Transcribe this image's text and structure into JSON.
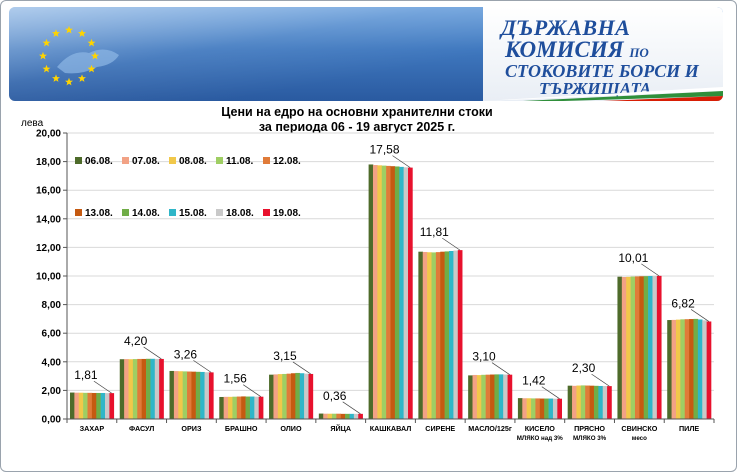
{
  "header": {
    "org_line1": "ДЪРЖАВНА",
    "org_line2_main": "КОМИСИЯ",
    "org_line2_small": "ПО",
    "org_line3": "СТОКОВИТЕ БОРСИ И",
    "org_line4": "ТЪРЖИЩАТА"
  },
  "chart_data": {
    "type": "bar",
    "title": "Цени на едро на основни хранителни стоки",
    "subtitle": "за периода 06 - 19 август 2025 г.",
    "ylabel": "лева",
    "xlabel": "",
    "ylim": [
      0,
      20
    ],
    "yticks": [
      "0,00",
      "2,00",
      "4,00",
      "6,00",
      "8,00",
      "10,00",
      "12,00",
      "14,00",
      "16,00",
      "18,00",
      "20,00"
    ],
    "grid": true,
    "legend_position": "top-left",
    "categories": [
      [
        "ЗАХАР"
      ],
      [
        "ФАСУЛ"
      ],
      [
        "ОРИЗ"
      ],
      [
        "БРАШНО"
      ],
      [
        "ОЛИО"
      ],
      [
        "ЯЙЦА"
      ],
      [
        "КАШКАВАЛ"
      ],
      [
        "СИРЕНЕ"
      ],
      [
        "МАСЛО/125г"
      ],
      [
        "КИСЕЛО",
        "МЛЯКО над 3%"
      ],
      [
        "ПРЯСНО",
        "МЛЯКО 3%"
      ],
      [
        "СВИНСКО",
        "месо"
      ],
      [
        "ПИЛЕ"
      ]
    ],
    "value_labels": [
      "1,81",
      "4,20",
      "3,26",
      "1,56",
      "3,15",
      "0,36",
      "17,58",
      "11,81",
      "3,10",
      "1,42",
      "2,30",
      "10,01",
      "6,82"
    ],
    "series": [
      {
        "name": "06.08.",
        "color": "#4e6b2a",
        "values": [
          1.85,
          4.18,
          3.36,
          1.54,
          3.1,
          0.38,
          17.8,
          11.7,
          3.05,
          1.46,
          2.33,
          9.95,
          6.92
        ]
      },
      {
        "name": "07.08.",
        "color": "#f2a285",
        "values": [
          1.84,
          4.19,
          3.35,
          1.55,
          3.12,
          0.37,
          17.76,
          11.68,
          3.08,
          1.45,
          2.32,
          9.93,
          6.93
        ]
      },
      {
        "name": "08.08.",
        "color": "#f1c84a",
        "values": [
          1.84,
          4.18,
          3.34,
          1.55,
          3.14,
          0.37,
          17.74,
          11.66,
          3.07,
          1.45,
          2.34,
          9.94,
          6.95
        ]
      },
      {
        "name": "11.08.",
        "color": "#9fce63",
        "values": [
          1.83,
          4.19,
          3.33,
          1.56,
          3.15,
          0.37,
          17.72,
          11.65,
          3.09,
          1.44,
          2.35,
          9.96,
          6.97
        ]
      },
      {
        "name": "12.08.",
        "color": "#e07b39",
        "values": [
          1.83,
          4.2,
          3.32,
          1.57,
          3.17,
          0.37,
          17.7,
          11.67,
          3.1,
          1.44,
          2.34,
          9.97,
          6.98
        ]
      },
      {
        "name": "13.08.",
        "color": "#c55a11",
        "values": [
          1.82,
          4.2,
          3.31,
          1.58,
          3.2,
          0.36,
          17.68,
          11.7,
          3.11,
          1.43,
          2.33,
          9.98,
          6.99
        ]
      },
      {
        "name": "14.08.",
        "color": "#70ad47",
        "values": [
          1.82,
          4.21,
          3.3,
          1.57,
          3.22,
          0.36,
          17.66,
          11.72,
          3.12,
          1.43,
          2.32,
          9.99,
          7.0
        ]
      },
      {
        "name": "15.08.",
        "color": "#2fb6c8",
        "values": [
          1.82,
          4.21,
          3.29,
          1.57,
          3.2,
          0.36,
          17.63,
          11.75,
          3.12,
          1.43,
          2.31,
          10.0,
          6.96
        ]
      },
      {
        "name": "18.08.",
        "color": "#c9c9c9",
        "values": [
          1.81,
          4.2,
          3.27,
          1.56,
          3.17,
          0.36,
          17.6,
          11.78,
          3.11,
          1.42,
          2.31,
          10.0,
          6.9
        ]
      },
      {
        "name": "19.08.",
        "color": "#e8112d",
        "values": [
          1.81,
          4.2,
          3.26,
          1.56,
          3.15,
          0.36,
          17.58,
          11.81,
          3.1,
          1.42,
          2.3,
          10.01,
          6.82
        ]
      }
    ]
  }
}
